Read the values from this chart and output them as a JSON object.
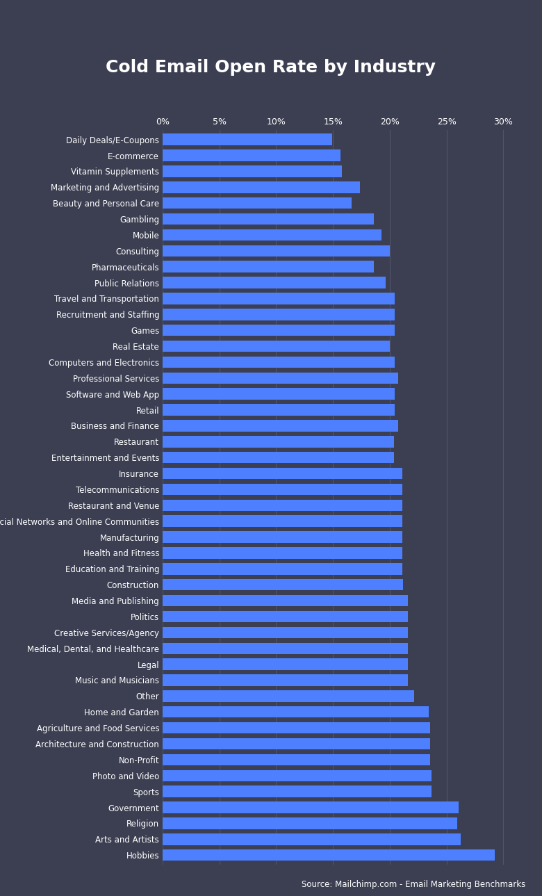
{
  "title": "Cold Email Open Rate by Industry",
  "source": "Source: Mailchimp.com - Email Marketing Benchmarks",
  "background_color": "#3c3f52",
  "bar_color": "#4d7fff",
  "grid_color": "#50546a",
  "text_color": "#ffffff",
  "categories": [
    "Daily Deals/E-Coupons",
    "E-commerce",
    "Vitamin Supplements",
    "Marketing and Advertising",
    "Beauty and Personal Care",
    "Gambling",
    "Mobile",
    "Consulting",
    "Pharmaceuticals",
    "Public Relations",
    "Travel and Transportation",
    "Recruitment and Staffing",
    "Games",
    "Real Estate",
    "Computers and Electronics",
    "Professional Services",
    "Software and Web App",
    "Retail",
    "Business and Finance",
    "Restaurant",
    "Entertainment and Events",
    "Insurance",
    "Telecommunications",
    "Restaurant and Venue",
    "Social Networks and Online Communities",
    "Manufacturing",
    "Health and Fitness",
    "Education and Training",
    "Construction",
    "Media and Publishing",
    "Politics",
    "Creative Services/Agency",
    "Medical, Dental, and Healthcare",
    "Legal",
    "Music and Musicians",
    "Other",
    "Home and Garden",
    "Agriculture and Food Services",
    "Architecture and Construction",
    "Non-Profit",
    "Photo and Video",
    "Sports",
    "Government",
    "Religion",
    "Arts and Artists",
    "Hobbies"
  ],
  "values": [
    14.92,
    15.68,
    15.8,
    17.38,
    16.65,
    18.58,
    19.29,
    19.98,
    18.58,
    19.63,
    20.44,
    20.44,
    20.44,
    19.98,
    20.44,
    20.72,
    20.44,
    20.44,
    20.72,
    20.39,
    20.39,
    21.1,
    21.1,
    21.1,
    21.1,
    21.1,
    21.1,
    21.1,
    21.2,
    21.57,
    21.57,
    21.57,
    21.57,
    21.57,
    21.57,
    22.15,
    23.46,
    23.57,
    23.57,
    23.57,
    23.68,
    23.68,
    26.06,
    25.92,
    26.27,
    29.27
  ],
  "xlim": [
    0,
    31.5
  ],
  "xticks": [
    0,
    5,
    10,
    15,
    20,
    25,
    30
  ],
  "xtick_labels": [
    "0%",
    "5%",
    "10%",
    "15%",
    "20%",
    "25%",
    "30%"
  ],
  "title_fontsize": 18,
  "label_fontsize": 8.5,
  "tick_fontsize": 9,
  "source_fontsize": 8.5,
  "bar_height": 0.72
}
